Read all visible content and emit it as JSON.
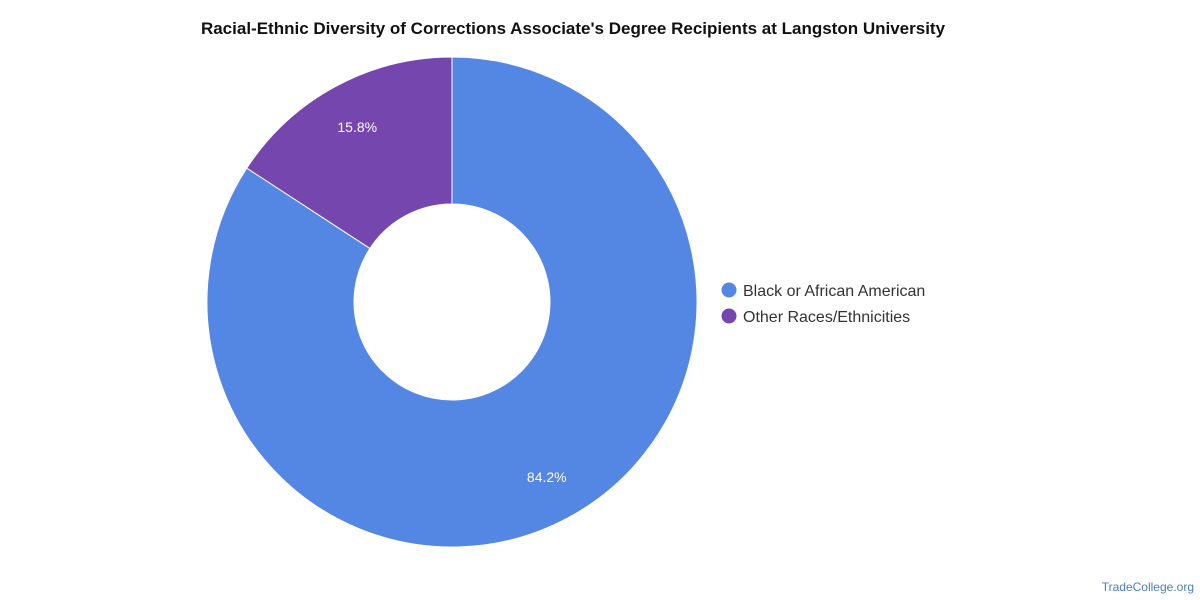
{
  "chart_data": {
    "type": "pie",
    "title": "Racial-Ethnic Diversity of Corrections Associate's Degree Recipients at Langston University",
    "donut": true,
    "legend_position": "right",
    "slices": [
      {
        "label": "Black or African American",
        "value": 84.2,
        "display": "84.2%",
        "color": "#5486e3"
      },
      {
        "label": "Other Races/Ethnicities",
        "value": 15.8,
        "display": "15.8%",
        "color": "#7446ae"
      }
    ]
  },
  "source": "TradeCollege.org"
}
